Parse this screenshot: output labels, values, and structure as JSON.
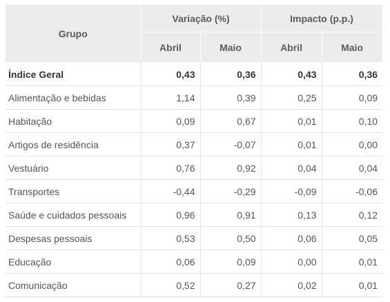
{
  "header": {
    "grupo": "Grupo",
    "variacao": "Variação (%)",
    "impacto": "Impacto (p.p.)",
    "sub": [
      "Abril",
      "Maio",
      "Abril",
      "Maio"
    ]
  },
  "rows": [
    {
      "grupo": "Índice Geral",
      "var_abril": "0,43",
      "var_maio": "0,36",
      "imp_abril": "0,43",
      "imp_maio": "0,36"
    },
    {
      "grupo": "Alimentação e bebidas",
      "var_abril": "1,14",
      "var_maio": "0,39",
      "imp_abril": "0,25",
      "imp_maio": "0,09"
    },
    {
      "grupo": "Habitação",
      "var_abril": "0,09",
      "var_maio": "0,67",
      "imp_abril": "0,01",
      "imp_maio": "0,10"
    },
    {
      "grupo": "Artigos de residência",
      "var_abril": "0,37",
      "var_maio": "-0,07",
      "imp_abril": "0,01",
      "imp_maio": "0,00"
    },
    {
      "grupo": "Vestuário",
      "var_abril": "0,76",
      "var_maio": "0,92",
      "imp_abril": "0,04",
      "imp_maio": "0,04"
    },
    {
      "grupo": "Transportes",
      "var_abril": "-0,44",
      "var_maio": "-0,29",
      "imp_abril": "-0,09",
      "imp_maio": "-0,06"
    },
    {
      "grupo": "Saúde e cuidados pessoais",
      "var_abril": "0,96",
      "var_maio": "0,91",
      "imp_abril": "0,13",
      "imp_maio": "0,12"
    },
    {
      "grupo": "Despesas pessoais",
      "var_abril": "0,53",
      "var_maio": "0,50",
      "imp_abril": "0,06",
      "imp_maio": "0,05"
    },
    {
      "grupo": "Educação",
      "var_abril": "0,06",
      "var_maio": "0,09",
      "imp_abril": "0,00",
      "imp_maio": "0,01"
    },
    {
      "grupo": "Comunicação",
      "var_abril": "0,52",
      "var_maio": "0,27",
      "imp_abril": "0,02",
      "imp_maio": "0,01"
    }
  ]
}
